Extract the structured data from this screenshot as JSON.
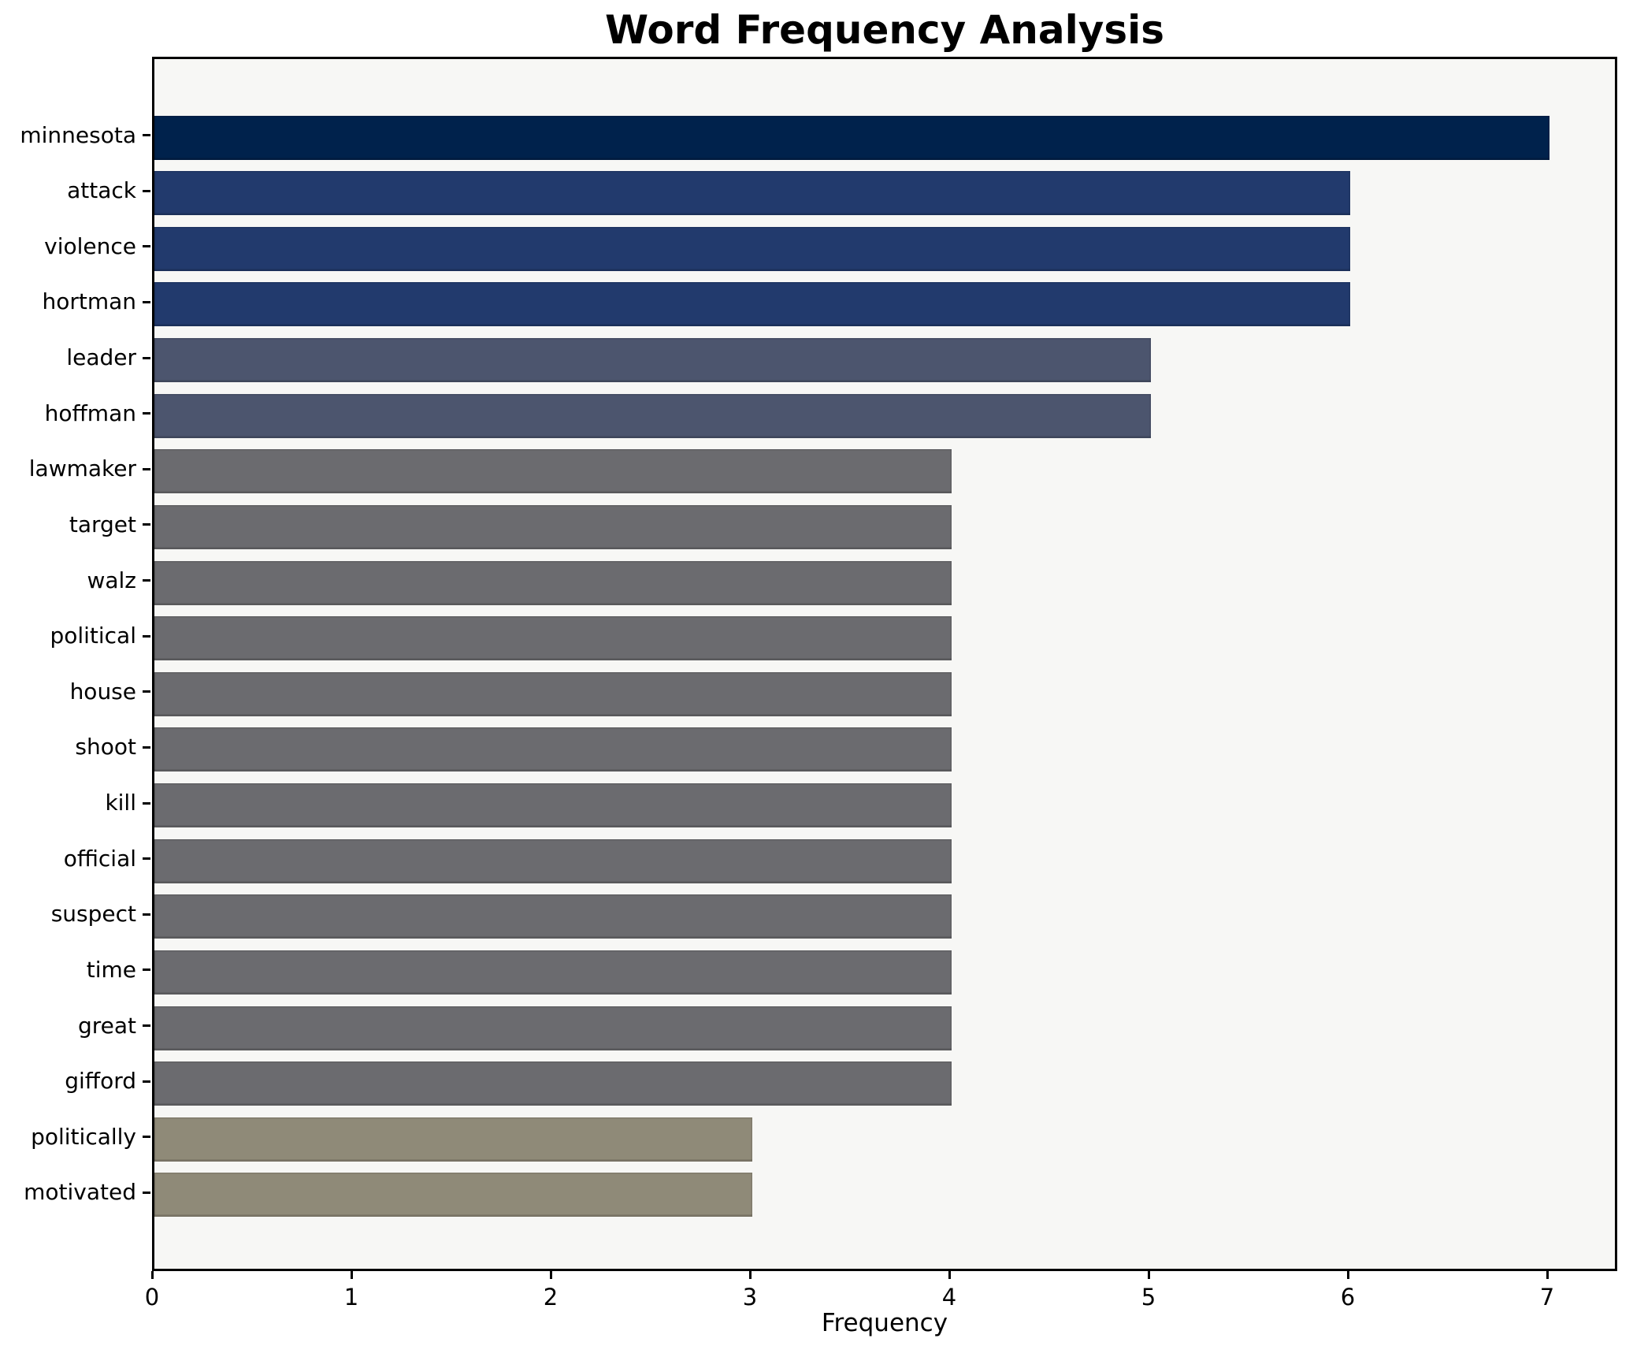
{
  "chart_data": {
    "type": "bar",
    "orientation": "horizontal",
    "title": "Word Frequency Analysis",
    "xlabel": "Frequency",
    "ylabel": "",
    "categories": [
      "minnesota",
      "attack",
      "violence",
      "hortman",
      "leader",
      "hoffman",
      "lawmaker",
      "target",
      "walz",
      "political",
      "house",
      "shoot",
      "kill",
      "official",
      "suspect",
      "time",
      "great",
      "gifford",
      "politically",
      "motivated"
    ],
    "values": [
      7,
      6,
      6,
      6,
      5,
      5,
      4,
      4,
      4,
      4,
      4,
      4,
      4,
      4,
      4,
      4,
      4,
      4,
      3,
      3
    ],
    "bar_colors": [
      "#00224c",
      "#223a6d",
      "#223a6d",
      "#223a6d",
      "#4c556e",
      "#4c556e",
      "#6b6b6f",
      "#6b6b6f",
      "#6b6b6f",
      "#6b6b6f",
      "#6b6b6f",
      "#6b6b6f",
      "#6b6b6f",
      "#6b6b6f",
      "#6b6b6f",
      "#6b6b6f",
      "#6b6b6f",
      "#6b6b6f",
      "#8f8a78",
      "#8f8a78"
    ],
    "xticks": [
      "0",
      "1",
      "2",
      "3",
      "4",
      "5",
      "6",
      "7"
    ],
    "xlim": [
      0,
      7.35
    ],
    "grid": false,
    "legend": null,
    "plot_bg": "#f7f7f5",
    "figure_bg": "#ffffff",
    "spine_color": "#000000",
    "text_color": "#000000"
  }
}
